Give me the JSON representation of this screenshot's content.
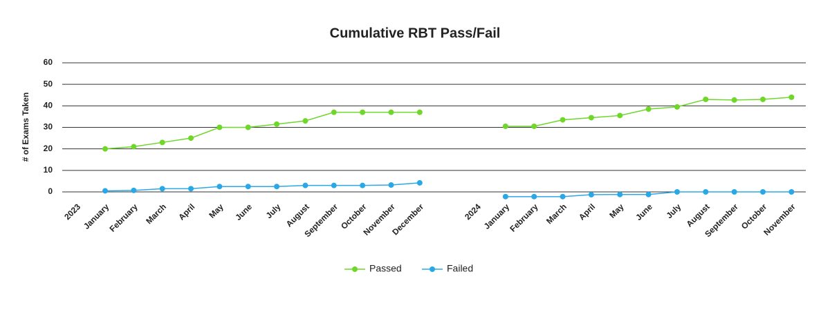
{
  "chart_data": {
    "type": "line",
    "title": "Cumulative RBT Pass/Fail",
    "y_label": "# of Exams Taken",
    "categories": [
      "2023",
      "January",
      "February",
      "March",
      "April",
      "May",
      "June",
      "July",
      "August",
      "September",
      "October",
      "November",
      "December",
      null,
      "2024",
      "January",
      "February",
      "March",
      "April",
      "May",
      "June",
      "July",
      "August",
      "September",
      "October",
      "November"
    ],
    "series": [
      {
        "name": "Passed",
        "color": "#6fd62a",
        "values": [
          null,
          20,
          21,
          23,
          25,
          30,
          30,
          31.5,
          33,
          37,
          37,
          37,
          37,
          null,
          null,
          30.5,
          30.5,
          33.5,
          34.5,
          35.5,
          38.5,
          39.5,
          43,
          42.7,
          43,
          44
        ]
      },
      {
        "name": "Failed",
        "color": "#2aa8e6",
        "values": [
          null,
          0.5,
          0.7,
          1.5,
          1.5,
          2.5,
          2.5,
          2.5,
          3,
          3,
          3,
          3.2,
          4.2,
          null,
          null,
          -2.2,
          -2.2,
          -2.2,
          -1.3,
          -1.2,
          -1.2,
          0,
          0,
          0,
          0,
          0
        ]
      }
    ],
    "ylim": [
      0,
      60
    ],
    "yticks": [
      0,
      10,
      20,
      30,
      40,
      50,
      60
    ],
    "grid": true,
    "legend": "bottom"
  }
}
